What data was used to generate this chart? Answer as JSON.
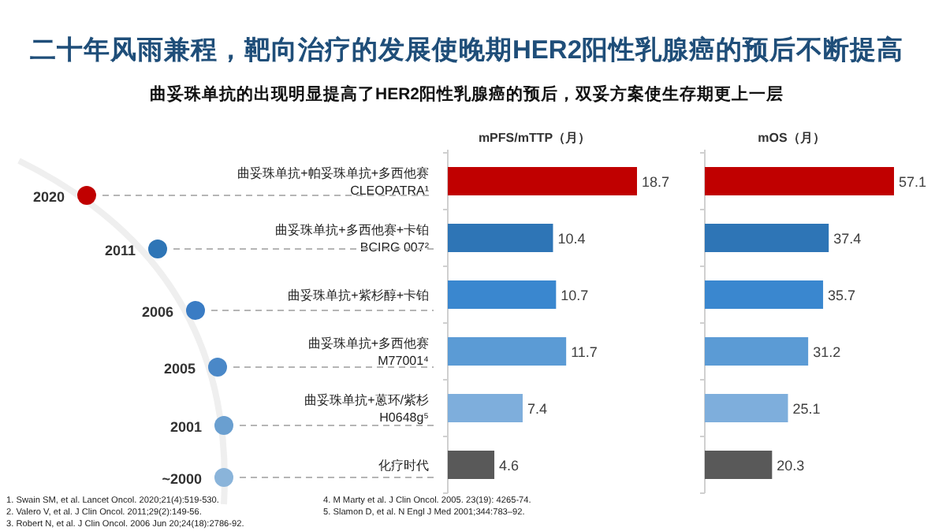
{
  "chart_data": [
    {
      "type": "bar",
      "orientation": "horizontal",
      "title": "二十年风雨兼程，靶向治疗的发展使晚期HER2阳性乳腺癌的预后不断提高",
      "subtitle": "曲妥珠单抗的出现明显提高了HER2阳性乳腺癌的预后，双妥方案使生存期更上一层",
      "xlabel": "mPFS/mTTP（月）",
      "categories": [
        "曲妥珠单抗+帕妥珠单抗+多西他赛\nCLEOPATRA¹",
        "曲妥珠单抗+多西他赛+卡铂\nBCIRG 007²",
        "曲妥珠单抗+紫杉醇+卡铂",
        "曲妥珠单抗+多西他赛\nM77001⁴",
        "曲妥珠单抗+蒽环/紫杉\nH0648g⁵",
        "化疗时代"
      ],
      "values": [
        18.7,
        10.4,
        10.7,
        11.7,
        7.4,
        4.6
      ],
      "colors": [
        "#c00000",
        "#2e75b6",
        "#3a87cf",
        "#5b9bd5",
        "#7eaedc",
        "#595959"
      ],
      "data_labels": true,
      "tick_labels": "y",
      "grid": false,
      "annotations": [
        "2020",
        "2011",
        "2006",
        "2005",
        "2001",
        "~2000",
        "1.    Swain SM, et al. Lancet Oncol. 2020;21(4):519-530.",
        "2.    Valero V, et al. J Clin Oncol. 2011;29(2):149-56.",
        "3.    Robert N, et al. J Clin Oncol. 2006 Jun 20;24(18):2786-92.",
        "4.    M Marty et al. J Clin Oncol. 2005. 23(19): 4265-74.",
        "5.    Slamon D, et al. N Engl J Med 2001;344:783–92."
      ]
    },
    {
      "type": "bar",
      "orientation": "horizontal",
      "xlabel": "mOS（月）",
      "values": [
        57.1,
        37.4,
        35.7,
        31.2,
        25.1,
        20.3
      ],
      "colors": [
        "#c00000",
        "#2e75b6",
        "#3a87cf",
        "#5b9bd5",
        "#7eaedc",
        "#595959"
      ],
      "data_labels": true,
      "tick_labels": false,
      "grid": false
    }
  ]
}
